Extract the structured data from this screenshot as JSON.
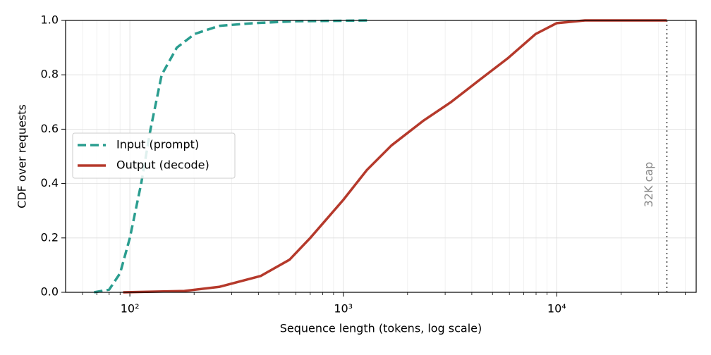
{
  "chart_data": {
    "type": "line",
    "x_label": "Sequence length (tokens, log scale)",
    "y_label": "CDF over requests",
    "xscale": "log",
    "xlim": [
      50,
      45000
    ],
    "ylim": [
      0,
      1
    ],
    "xticks": [
      {
        "value": 100,
        "label": "10²"
      },
      {
        "value": 1000,
        "label": "10³"
      },
      {
        "value": 10000,
        "label": "10⁴"
      }
    ],
    "xminorticks": [
      60,
      70,
      80,
      90,
      200,
      300,
      400,
      500,
      600,
      700,
      800,
      900,
      2000,
      3000,
      4000,
      5000,
      6000,
      7000,
      8000,
      9000,
      20000,
      30000,
      40000
    ],
    "yticks": [
      {
        "value": 0,
        "label": "0.0"
      },
      0.2,
      0.4,
      0.6,
      0.8,
      {
        "value": 1,
        "label": "1.0"
      }
    ],
    "grid": true,
    "legend_loc": "center left",
    "series": [
      {
        "name": "Input (prompt)",
        "color": "#2a9d8f",
        "dash": "dashed",
        "x": [
          68,
          80,
          90,
          100,
          113,
          125,
          141,
          166,
          201,
          262,
          380,
          600,
          1340
        ],
        "values": [
          0,
          0.01,
          0.07,
          0.2,
          0.4,
          0.6,
          0.8,
          0.9,
          0.95,
          0.98,
          0.99,
          0.997,
          1.0
        ]
      },
      {
        "name": "Output (decode)",
        "color": "#b5392b",
        "dash": "solid",
        "x": [
          93,
          180,
          262,
          410,
          560,
          700,
          1000,
          1290,
          1680,
          2360,
          3200,
          4330,
          5880,
          7960,
          10000,
          13550,
          32768
        ],
        "values": [
          0,
          0.005,
          0.02,
          0.06,
          0.12,
          0.2,
          0.34,
          0.45,
          0.54,
          0.63,
          0.7,
          0.78,
          0.86,
          0.95,
          0.99,
          1.0,
          1.0
        ]
      }
    ],
    "cap_x": 32768,
    "cap_label": "32K cap"
  }
}
